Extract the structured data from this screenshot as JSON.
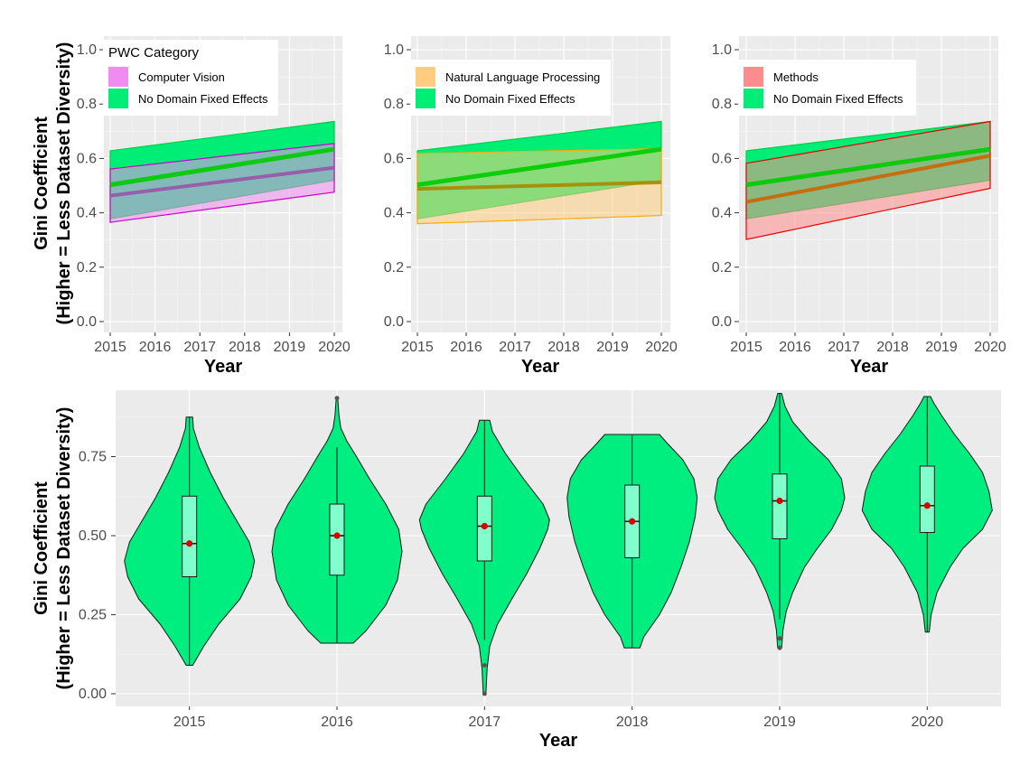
{
  "colors": {
    "panel_bg": "#ebebeb",
    "grid_major": "#ffffff",
    "no_domain": "#00ee76",
    "no_domain_line": "#00cc00",
    "violin_fill": "#00ee80",
    "box_fill": "#80ffcc",
    "median_dot": "#dd0000"
  },
  "chart_data": [
    {
      "type": "area",
      "panel": "top-left",
      "title": "",
      "xlabel": "Year",
      "ylabel": "Gini Coefficient",
      "ylabel2": "(Higher = Less Dataset Diversity)",
      "x": [
        2015,
        2020
      ],
      "xticks": [
        "2015",
        "2016",
        "2017",
        "2018",
        "2019",
        "2020"
      ],
      "yticks": [
        "0.0",
        "0.2",
        "0.4",
        "0.6",
        "0.8",
        "1.0"
      ],
      "ylim": [
        -0.04,
        1.05
      ],
      "legend_title": "PWC Category",
      "legend_position": "top-left",
      "series": [
        {
          "name": "Computer Vision",
          "fill": "#f08cf0",
          "line": "#9955aa",
          "edge": "#cc00cc",
          "values": [
            0.463,
            0.566
          ],
          "lower": [
            0.365,
            0.476
          ],
          "upper": [
            0.561,
            0.655
          ]
        },
        {
          "name": "No Domain Fixed Effects",
          "fill": "#00ee76",
          "line": "#22bb00",
          "edge": "#00cc44",
          "values": [
            0.503,
            0.634
          ],
          "lower": [
            0.378,
            0.52
          ],
          "upper": [
            0.628,
            0.736
          ]
        }
      ]
    },
    {
      "type": "area",
      "panel": "top-middle",
      "title": "",
      "xlabel": "Year",
      "x": [
        2015,
        2020
      ],
      "xticks": [
        "2015",
        "2016",
        "2017",
        "2018",
        "2019",
        "2020"
      ],
      "yticks": [
        "0.0",
        "0.2",
        "0.4",
        "0.6",
        "0.8",
        "1.0"
      ],
      "ylim": [
        -0.04,
        1.05
      ],
      "legend_position": "top-left",
      "series": [
        {
          "name": "Natural Language Processing",
          "fill": "#ffcc80",
          "line": "#aa8800",
          "edge": "#ffaa00",
          "values": [
            0.488,
            0.512
          ],
          "lower": [
            0.36,
            0.39
          ],
          "upper": [
            0.618,
            0.636
          ]
        },
        {
          "name": "No Domain Fixed Effects",
          "fill": "#00ee76",
          "line": "#22bb00",
          "edge": "#00cc44",
          "values": [
            0.503,
            0.634
          ],
          "lower": [
            0.378,
            0.52
          ],
          "upper": [
            0.628,
            0.736
          ]
        }
      ]
    },
    {
      "type": "area",
      "panel": "top-right",
      "title": "",
      "xlabel": "Year",
      "x": [
        2015,
        2020
      ],
      "xticks": [
        "2015",
        "2016",
        "2017",
        "2018",
        "2019",
        "2020"
      ],
      "yticks": [
        "0.0",
        "0.2",
        "0.4",
        "0.6",
        "0.8",
        "1.0"
      ],
      "ylim": [
        -0.04,
        1.05
      ],
      "legend_position": "top-left",
      "series": [
        {
          "name": "Methods",
          "fill": "#ff8c8c",
          "line": "#cc6600",
          "edge": "#ee0000",
          "values": [
            0.44,
            0.61
          ],
          "lower": [
            0.302,
            0.49
          ],
          "upper": [
            0.582,
            0.736
          ]
        },
        {
          "name": "No Domain Fixed Effects",
          "fill": "#00ee76",
          "line": "#22bb00",
          "edge": "#00cc44",
          "values": [
            0.503,
            0.634
          ],
          "lower": [
            0.378,
            0.52
          ],
          "upper": [
            0.628,
            0.736
          ]
        }
      ]
    },
    {
      "type": "violin",
      "panel": "bottom",
      "title": "",
      "xlabel": "Year",
      "ylabel": "Gini Coefficient",
      "ylabel2": "(Higher = Less Dataset Diversity)",
      "categories": [
        "2015",
        "2016",
        "2017",
        "2018",
        "2019",
        "2020"
      ],
      "yticks": [
        "0.00",
        "0.25",
        "0.50",
        "0.75"
      ],
      "ylim": [
        -0.04,
        0.96
      ],
      "violins": [
        {
          "year": "2015",
          "min": 0.09,
          "max": 0.875,
          "median": 0.475,
          "q1": 0.37,
          "q3": 0.625,
          "whisker_low": 0.09,
          "whisker_high": 0.875,
          "outliers": [],
          "density": [
            [
              0.09,
              0.05
            ],
            [
              0.15,
              0.22
            ],
            [
              0.22,
              0.45
            ],
            [
              0.3,
              0.78
            ],
            [
              0.37,
              0.95
            ],
            [
              0.42,
              1.0
            ],
            [
              0.48,
              0.92
            ],
            [
              0.55,
              0.72
            ],
            [
              0.62,
              0.52
            ],
            [
              0.7,
              0.32
            ],
            [
              0.78,
              0.15
            ],
            [
              0.84,
              0.06
            ],
            [
              0.875,
              0.05
            ]
          ]
        },
        {
          "year": "2016",
          "min": 0.16,
          "max": 0.94,
          "median": 0.5,
          "q1": 0.375,
          "q3": 0.6,
          "whisker_low": 0.16,
          "whisker_high": 0.78,
          "outliers": [
            0.935
          ],
          "density": [
            [
              0.16,
              0.25
            ],
            [
              0.2,
              0.45
            ],
            [
              0.28,
              0.75
            ],
            [
              0.36,
              0.93
            ],
            [
              0.45,
              1.0
            ],
            [
              0.52,
              0.95
            ],
            [
              0.6,
              0.75
            ],
            [
              0.68,
              0.5
            ],
            [
              0.75,
              0.3
            ],
            [
              0.8,
              0.15
            ],
            [
              0.84,
              0.06
            ],
            [
              0.88,
              0.03
            ],
            [
              0.94,
              0.01
            ]
          ]
        },
        {
          "year": "2017",
          "min": 0.0,
          "max": 0.865,
          "median": 0.53,
          "q1": 0.42,
          "q3": 0.625,
          "whisker_low": 0.17,
          "whisker_high": 0.865,
          "outliers": [
            0.09,
            0.0
          ],
          "density": [
            [
              0.0,
              0.02
            ],
            [
              0.08,
              0.04
            ],
            [
              0.15,
              0.08
            ],
            [
              0.22,
              0.2
            ],
            [
              0.3,
              0.42
            ],
            [
              0.38,
              0.65
            ],
            [
              0.46,
              0.85
            ],
            [
              0.52,
              0.97
            ],
            [
              0.55,
              1.0
            ],
            [
              0.6,
              0.9
            ],
            [
              0.68,
              0.6
            ],
            [
              0.76,
              0.32
            ],
            [
              0.83,
              0.12
            ],
            [
              0.865,
              0.08
            ]
          ]
        },
        {
          "year": "2018",
          "min": 0.145,
          "max": 0.82,
          "median": 0.545,
          "q1": 0.43,
          "q3": 0.66,
          "whisker_low": 0.145,
          "whisker_high": 0.82,
          "outliers": [],
          "density": [
            [
              0.145,
              0.12
            ],
            [
              0.18,
              0.18
            ],
            [
              0.25,
              0.42
            ],
            [
              0.32,
              0.6
            ],
            [
              0.4,
              0.75
            ],
            [
              0.48,
              0.88
            ],
            [
              0.56,
              0.97
            ],
            [
              0.62,
              1.0
            ],
            [
              0.68,
              0.95
            ],
            [
              0.74,
              0.78
            ],
            [
              0.79,
              0.55
            ],
            [
              0.82,
              0.42
            ]
          ]
        },
        {
          "year": "2019",
          "min": 0.145,
          "max": 0.95,
          "median": 0.61,
          "q1": 0.49,
          "q3": 0.695,
          "whisker_low": 0.235,
          "whisker_high": 0.95,
          "outliers": [
            0.175,
            0.145
          ],
          "density": [
            [
              0.145,
              0.03
            ],
            [
              0.2,
              0.05
            ],
            [
              0.26,
              0.1
            ],
            [
              0.32,
              0.2
            ],
            [
              0.4,
              0.38
            ],
            [
              0.46,
              0.58
            ],
            [
              0.52,
              0.8
            ],
            [
              0.58,
              0.95
            ],
            [
              0.62,
              1.0
            ],
            [
              0.68,
              0.95
            ],
            [
              0.74,
              0.75
            ],
            [
              0.8,
              0.45
            ],
            [
              0.86,
              0.2
            ],
            [
              0.91,
              0.08
            ],
            [
              0.95,
              0.03
            ]
          ]
        },
        {
          "year": "2020",
          "min": 0.195,
          "max": 0.94,
          "median": 0.595,
          "q1": 0.51,
          "q3": 0.72,
          "whisker_low": 0.195,
          "whisker_high": 0.94,
          "outliers": [],
          "density": [
            [
              0.195,
              0.03
            ],
            [
              0.25,
              0.06
            ],
            [
              0.32,
              0.15
            ],
            [
              0.4,
              0.35
            ],
            [
              0.46,
              0.55
            ],
            [
              0.52,
              0.85
            ],
            [
              0.58,
              1.0
            ],
            [
              0.64,
              0.95
            ],
            [
              0.7,
              0.85
            ],
            [
              0.76,
              0.65
            ],
            [
              0.82,
              0.42
            ],
            [
              0.88,
              0.22
            ],
            [
              0.92,
              0.1
            ],
            [
              0.94,
              0.05
            ]
          ]
        }
      ]
    }
  ]
}
